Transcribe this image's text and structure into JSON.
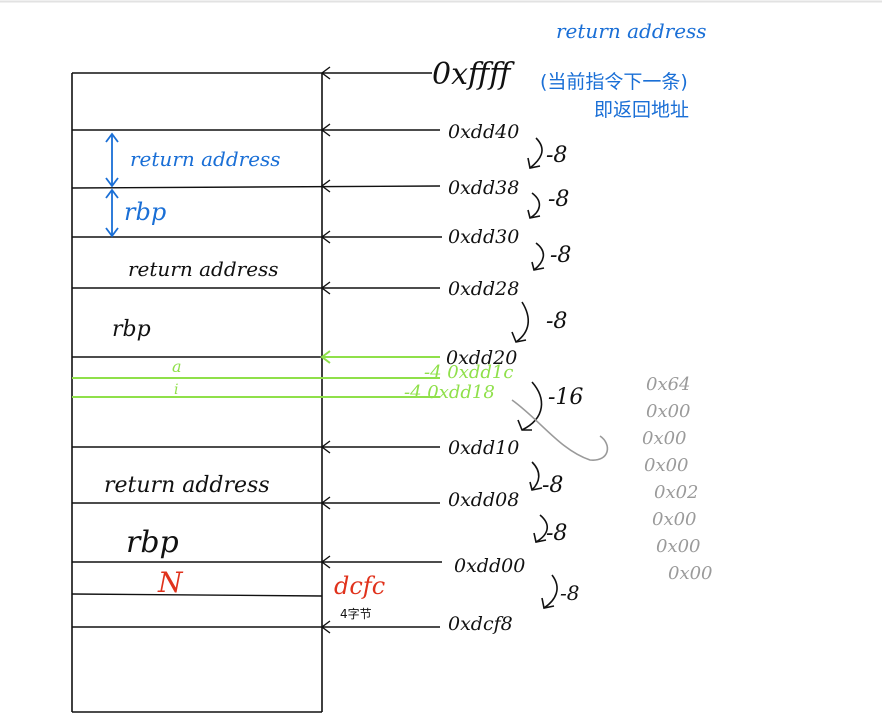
{
  "colors": {
    "ink": "#111111",
    "blue": "#1a6fd6",
    "green": "#8fe04a",
    "red": "#e0321c",
    "gray": "#9a9a9a"
  },
  "header_note": {
    "line1": "return address",
    "line2": "(当前指令下一条)",
    "line3": "即返回地址"
  },
  "addresses": {
    "top": "0xffff",
    "a1": "0xdd40",
    "a2": "0xdd38",
    "a3": "0xdd30",
    "a4": "0xdd28",
    "a5": "0xdd20",
    "g1": "-4 0xdd1c",
    "g2": "-4 0xdd18",
    "a6": "0xdd10",
    "a7": "0xdd08",
    "a8": "0xdd00",
    "a9": "0xdcf8"
  },
  "offsets": {
    "o1": "-8",
    "o2": "-8",
    "o3": "-8",
    "o4": "-8",
    "o5": "-16",
    "o6": "-8",
    "o7": "-8",
    "o8": "-8"
  },
  "cells": {
    "ra_blue": "return address",
    "rbp_blue": "rbp",
    "ra2": "return address",
    "rbp2": "rbp",
    "a": "a",
    "i": "i",
    "ra3": "return address",
    "rbp3": "rbp",
    "n": "N"
  },
  "side_notes": {
    "dcfc": "dcfc",
    "bytes": "4字节"
  },
  "byte_dump": [
    "0x64",
    "0x00",
    "0x00",
    "0x00",
    "0x02",
    "0x00",
    "0x00",
    "0x00"
  ]
}
